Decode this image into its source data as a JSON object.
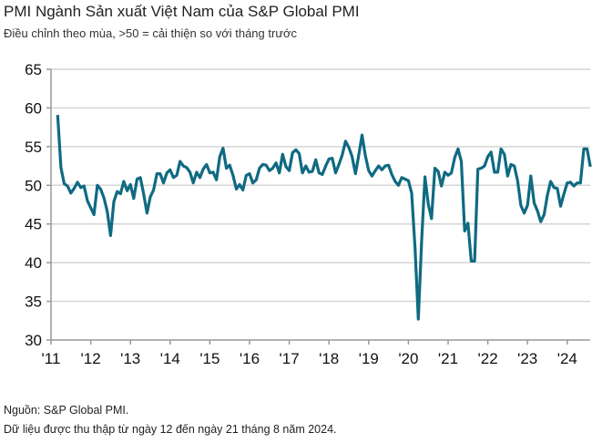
{
  "title": "PMI Ngành Sản xuất Việt Nam của S&P Global PMI",
  "subtitle": "Điều chỉnh theo mùa, >50 = cải thiện so với tháng trước",
  "footer": {
    "source": "Nguồn: S&P Global PMI.",
    "note": "Dữ liệu được thu thập từ ngày 12 đến ngày 21 tháng 8 năm 2024."
  },
  "chart_data": {
    "type": "line",
    "title": "PMI Ngành Sản xuất Việt Nam của S&P Global PMI",
    "subtitle": "Điều chỉnh theo mùa, >50 = cải thiện so với tháng trước",
    "ylim": [
      30,
      65
    ],
    "yticks": [
      "65",
      "60",
      "55",
      "50",
      "45",
      "40",
      "35",
      "30"
    ],
    "xticks": [
      "'11",
      "'12",
      "'13",
      "'14",
      "'15",
      "'16",
      "'17",
      "'18",
      "'19",
      "'20",
      "'21",
      "'22",
      "'23",
      "'24"
    ],
    "grid": "horizontal",
    "line_color": "#0f6a82",
    "start": "2011-03",
    "end": "2024-08",
    "frequency": "monthly",
    "values": [
      59.1,
      52.3,
      50.2,
      49.9,
      49.0,
      49.6,
      50.4,
      49.7,
      49.9,
      48.0,
      47.1,
      46.2,
      50.0,
      49.5,
      48.4,
      46.6,
      43.5,
      47.9,
      49.2,
      48.9,
      50.5,
      49.3,
      50.1,
      48.3,
      50.8,
      51.0,
      48.9,
      46.4,
      48.5,
      49.4,
      51.5,
      51.5,
      50.3,
      51.6,
      52.0,
      51.0,
      51.3,
      53.1,
      52.5,
      52.3,
      51.7,
      50.3,
      51.7,
      51.0,
      52.1,
      52.7,
      51.6,
      51.7,
      50.7,
      53.7,
      54.8,
      52.2,
      52.6,
      51.3,
      49.5,
      50.1,
      49.4,
      51.3,
      51.5,
      50.3,
      50.7,
      52.2,
      52.7,
      52.6,
      51.9,
      52.2,
      52.9,
      51.6,
      54.0,
      52.4,
      51.9,
      54.2,
      54.6,
      54.1,
      51.6,
      52.5,
      51.7,
      51.8,
      53.3,
      51.6,
      51.4,
      52.5,
      53.4,
      53.5,
      51.6,
      52.7,
      53.9,
      55.7,
      54.9,
      53.7,
      51.5,
      53.9,
      56.5,
      53.8,
      51.9,
      51.2,
      51.9,
      52.5,
      52.0,
      52.5,
      52.6,
      51.4,
      50.5,
      50.0,
      51.0,
      50.8,
      50.6,
      49.0,
      41.9,
      32.7,
      42.7,
      51.1,
      47.6,
      45.7,
      52.2,
      51.8,
      49.9,
      51.7,
      51.3,
      51.6,
      53.6,
      54.7,
      53.1,
      44.1,
      45.1,
      40.2,
      40.2,
      52.1,
      52.2,
      52.5,
      53.7,
      54.3,
      51.7,
      51.7,
      54.7,
      54.0,
      51.2,
      52.7,
      52.5,
      50.6,
      47.4,
      46.4,
      47.4,
      51.2,
      47.7,
      46.7,
      45.3,
      46.2,
      48.7,
      50.5,
      49.7,
      49.6,
      47.3,
      48.9,
      50.3,
      50.4,
      49.9,
      50.3,
      50.3,
      54.7,
      54.7,
      52.4
    ]
  }
}
